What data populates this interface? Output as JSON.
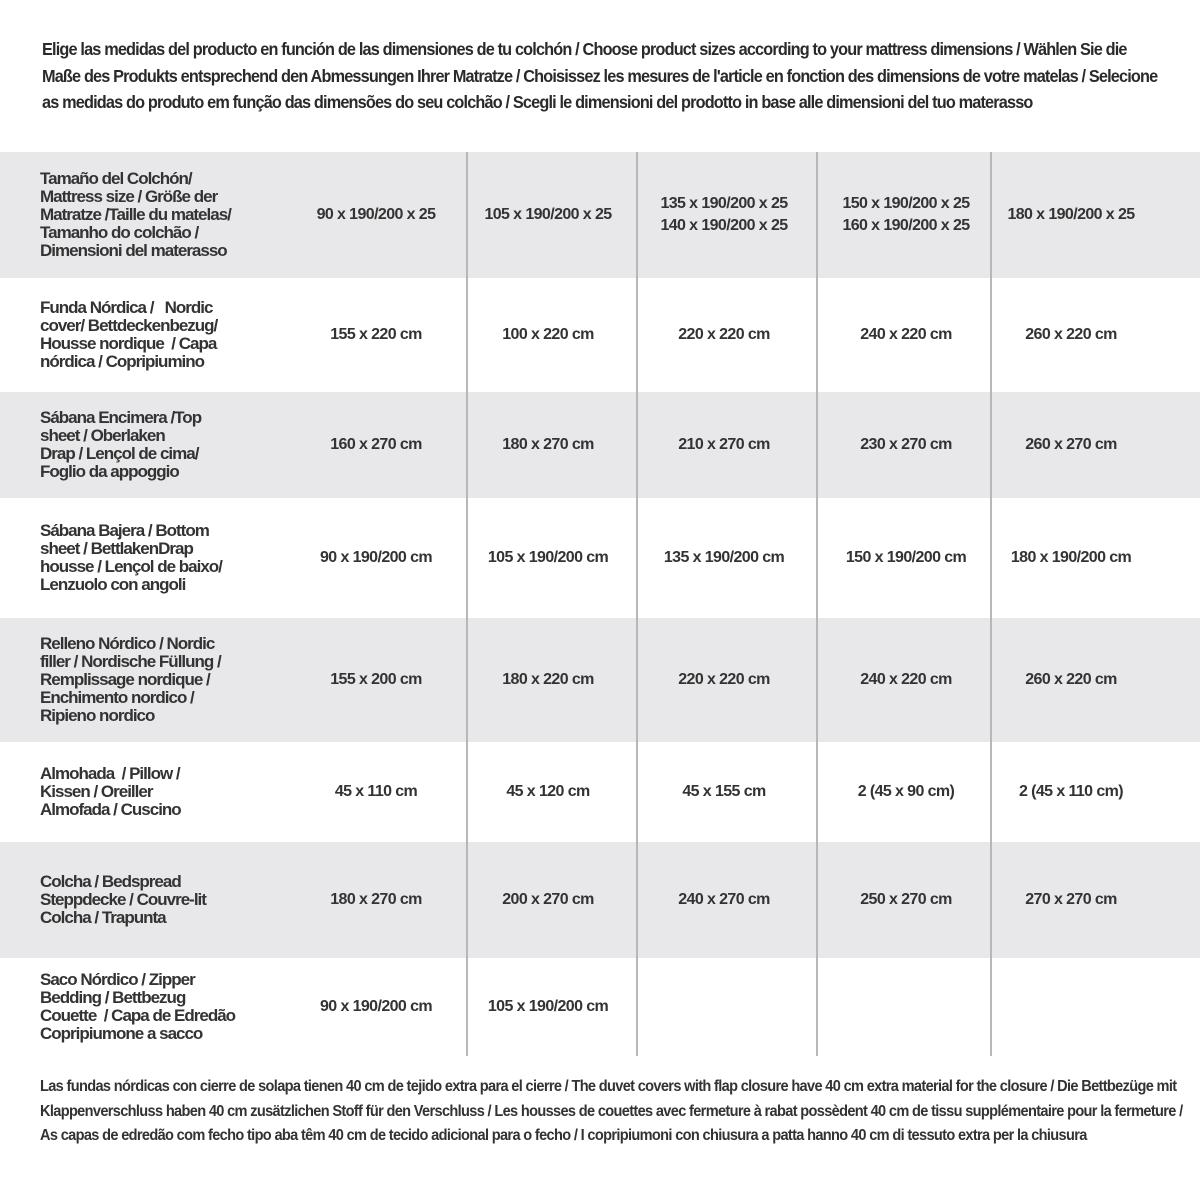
{
  "intro": "Elige las medidas del producto en función de las dimensiones de tu colchón / Choose product sizes according to your mattress dimensions / Wählen Sie die Maße des Produkts entsprechend den Abmessungen Ihrer Matratze / Choisissez les mesures de l'article en fonction des dimensions de votre matelas / Selecione as medidas do produto em função das dimensões do seu colchão / Scegli le dimensioni del prodotto in base alle dimensioni del tuo materasso",
  "rows": [
    {
      "label": "Tamaño del Colchón/\nMattress size / Größe der\nMatratze /Taille du matelas/\nTamanho do colchão /\nDimensioni del materasso",
      "cells": [
        "90 x 190/200 x 25",
        "105 x 190/200 x 25",
        "135 x 190/200 x 25\n140 x 190/200 x 25",
        "150 x 190/200 x 25\n160 x 190/200 x 25",
        "180 x 190/200 x 25"
      ]
    },
    {
      "label": "Funda Nórdica /   Nordic\ncover/ Bettdeckenbezug/\nHousse nordique  / Capa\nnórdica / Copripiumino",
      "cells": [
        "155 x 220 cm",
        "100 x 220 cm",
        "220 x 220 cm",
        "240 x 220 cm",
        "260 x 220 cm"
      ]
    },
    {
      "label": "Sábana Encimera /Top\nsheet / Oberlaken\nDrap / Lençol de cima/\nFoglio da appoggio",
      "cells": [
        "160 x 270 cm",
        "180 x 270 cm",
        "210 x 270 cm",
        "230 x 270 cm",
        "260 x 270 cm"
      ]
    },
    {
      "label": "Sábana Bajera / Bottom\nsheet / BettlakenDrap\nhousse / Lençol de baixo/\nLenzuolo con angoli",
      "cells": [
        "90 x 190/200 cm",
        "105 x 190/200 cm",
        "135 x 190/200 cm",
        "150 x 190/200 cm",
        "180 x 190/200 cm"
      ]
    },
    {
      "label": "Relleno Nórdico / Nordic\nfiller / Nordische Füllung /\nRemplissage nordique /\nEnchimento nordico /\nRipieno nordico",
      "cells": [
        "155 x 200 cm",
        "180 x 220 cm",
        "220 x 220 cm",
        "240 x 220 cm",
        "260 x 220 cm"
      ]
    },
    {
      "label": "Almohada  / Pillow /\nKissen / Oreiller\nAlmofada / Cuscino",
      "cells": [
        "45 x 110 cm",
        "45 x 120 cm",
        "45 x 155 cm",
        "2 (45 x 90 cm)",
        "2 (45 x 110 cm)"
      ]
    },
    {
      "label": "Colcha / Bedspread\nSteppdecke / Couvre-lit\nColcha / Trapunta",
      "cells": [
        "180 x 270 cm",
        "200 x 270 cm",
        "240 x 270 cm",
        "250 x 270 cm",
        "270 x 270 cm"
      ]
    },
    {
      "label": "Saco Nórdico / Zipper\nBedding / Bettbezug\nCouette  / Capa de Edredão\nCopripiumone a sacco",
      "cells": [
        "90 x 190/200 cm",
        "105 x 190/200 cm",
        "",
        "",
        ""
      ]
    }
  ],
  "footer": "Las fundas nórdicas con cierre de solapa tienen 40 cm de tejido extra para el cierre  / The duvet covers with flap closure have 40 cm extra material for the closure / Die Bettbezüge mit Klappenverschluss haben 40 cm zusätzlichen Stoff für den Verschluss / Les housses de couettes avec fermeture à rabat possèdent 40 cm de tissu supplémentaire pour la fermeture / As capas de edredão com fecho tipo aba têm 40 cm de tecido adicional para o fecho / I copripiumoni con chiusura a patta hanno 40 cm di tessuto extra per la chiusura",
  "colors": {
    "stripe": "#e8e8ea",
    "divider": "#b8b8b8",
    "text": "#333333"
  }
}
